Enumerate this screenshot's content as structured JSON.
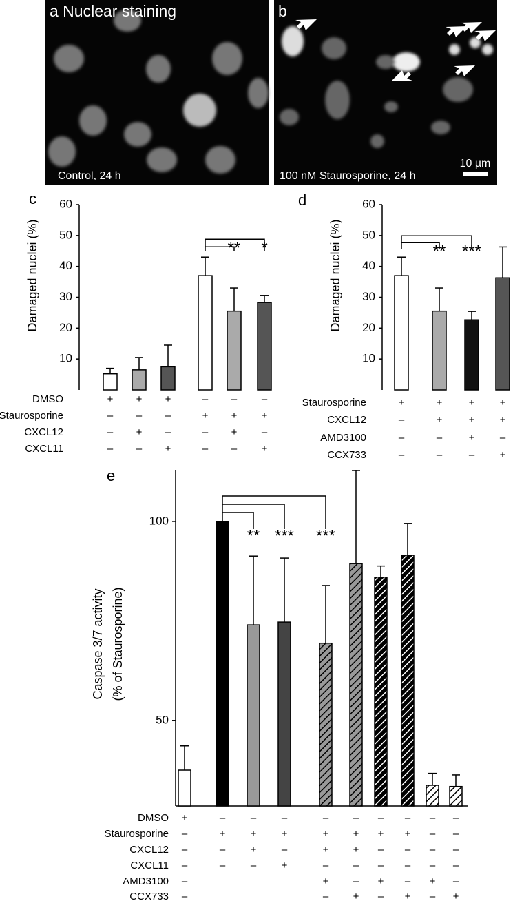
{
  "images": [
    {
      "label": "a Nuclear staining",
      "caption": "Control, 24 h"
    },
    {
      "label": "b",
      "caption": "100 nM Staurosporine, 24 h",
      "scale_bar": "10 µm"
    }
  ],
  "chart_data": [
    {
      "type": "bar",
      "panel": "c",
      "ylabel": [
        "Damaged nuclei (%)"
      ],
      "ylim": [
        0,
        60
      ],
      "yticks": [
        10,
        20,
        30,
        40,
        50,
        60
      ],
      "values": [
        5.2,
        6.5,
        7.5,
        37,
        25.5,
        28.3
      ],
      "errors": [
        1.8,
        4,
        7,
        6,
        7.5,
        2.3
      ],
      "colors": [
        "#ffffff",
        "#aaaaaa",
        "#555555",
        "#ffffff",
        "#aaaaaa",
        "#555555"
      ],
      "significance": [
        null,
        null,
        null,
        null,
        "**",
        "*"
      ],
      "conditions": [
        {
          "name": "DMSO",
          "marks": [
            "+",
            "+",
            "+",
            "–",
            "–",
            "–"
          ]
        },
        {
          "name": "Staurosporine",
          "marks": [
            "–",
            "–",
            "–",
            "+",
            "+",
            "+"
          ]
        },
        {
          "name": "CXCL12",
          "marks": [
            "–",
            "+",
            "–",
            "–",
            "+",
            "–"
          ]
        },
        {
          "name": "CXCL11",
          "marks": [
            "–",
            "–",
            "+",
            "–",
            "–",
            "+"
          ]
        }
      ]
    },
    {
      "type": "bar",
      "panel": "d",
      "ylabel": [
        "Damaged nuclei (%)"
      ],
      "ylim": [
        0,
        60
      ],
      "yticks": [
        10,
        20,
        30,
        40,
        50,
        60
      ],
      "values": [
        37,
        25.5,
        22.7,
        36.3
      ],
      "errors": [
        6,
        7.5,
        2.7,
        10
      ],
      "colors": [
        "#ffffff",
        "#aaaaaa",
        "#111111",
        "#555555"
      ],
      "significance": [
        null,
        "**",
        "***",
        null
      ],
      "conditions": [
        {
          "name": "Staurosporine",
          "marks": [
            "+",
            "+",
            "+",
            "+"
          ]
        },
        {
          "name": "CXCL12",
          "marks": [
            "–",
            "+",
            "+",
            "+"
          ]
        },
        {
          "name": "AMD3100",
          "marks": [
            "–",
            "–",
            "+",
            "–"
          ]
        },
        {
          "name": "CCX733",
          "marks": [
            "–",
            "–",
            "–",
            "+"
          ]
        }
      ]
    },
    {
      "type": "bar",
      "panel": "e",
      "ylabel": [
        "Caspase 3/7 activity",
        "(% of Staurosporine)"
      ],
      "ylim": [
        28.5,
        112.8
      ],
      "yticks": [
        50,
        100
      ],
      "values": [
        37.5,
        100,
        74.0,
        74.7,
        69.4,
        89.4,
        86.0,
        91.5,
        33.7,
        33.4
      ],
      "errors": [
        6.1,
        null,
        17.3,
        16.1,
        14.5,
        23.4,
        2.8,
        8.0,
        3.0,
        2.9
      ],
      "colors": [
        "#ffffff",
        "#000000",
        "#999999",
        "#444444",
        "#999999",
        "#999999",
        "#000000",
        "#000000",
        "#ffffff",
        "#ffffff"
      ],
      "hatch": [
        false,
        false,
        false,
        false,
        true,
        true,
        true,
        true,
        true,
        true
      ],
      "significance": [
        null,
        null,
        "**",
        "***",
        "***",
        null,
        null,
        null,
        null,
        null
      ],
      "conditions": [
        {
          "name": "DMSO",
          "marks": [
            "+",
            "–",
            "–",
            "–",
            "–",
            "–",
            "–",
            "–",
            "–",
            "–"
          ]
        },
        {
          "name": "Staurosporine",
          "marks": [
            "–",
            "+",
            "+",
            "+",
            "+",
            "+",
            "+",
            "+",
            "–",
            "–"
          ]
        },
        {
          "name": "CXCL12",
          "marks": [
            "–",
            "–",
            "+",
            "–",
            "+",
            "+",
            "–",
            "–",
            "–",
            "–"
          ]
        },
        {
          "name": "CXCL11",
          "marks": [
            "–",
            "–",
            "–",
            "+",
            "–",
            "–",
            "–",
            "–",
            "–",
            "–"
          ]
        },
        {
          "name": "AMD3100",
          "marks": [
            "–",
            null,
            null,
            null,
            "+",
            "–",
            "+",
            "–",
            "+",
            "–"
          ]
        },
        {
          "name": "CCX733",
          "marks": [
            "–",
            null,
            null,
            null,
            "–",
            "+",
            "–",
            "+",
            "–",
            "+"
          ]
        }
      ]
    }
  ]
}
